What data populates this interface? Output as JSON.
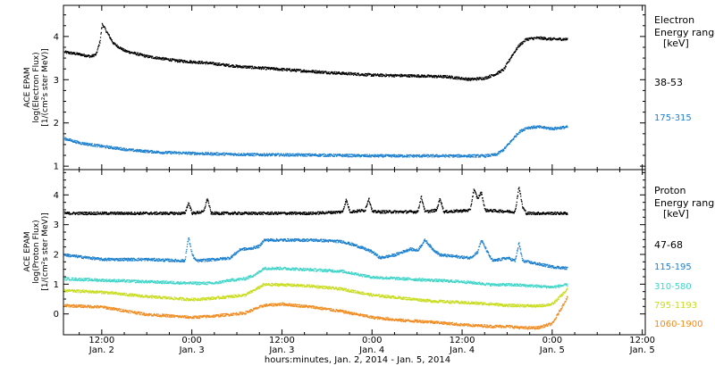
{
  "chart_data": {
    "type": "scatter",
    "xlabel": "hours:minutes, Jan.  2, 2014 - Jan.  5, 2014",
    "x_ticks": [
      {
        "hour": 12,
        "time": "12:00",
        "day": "Jan. 2"
      },
      {
        "hour": 24,
        "time": "0:00",
        "day": "Jan. 3"
      },
      {
        "hour": 36,
        "time": "12:00",
        "day": "Jan. 3"
      },
      {
        "hour": 48,
        "time": "0:00",
        "day": "Jan. 4"
      },
      {
        "hour": 60,
        "time": "12:00",
        "day": "Jan. 4"
      },
      {
        "hour": 72,
        "time": "0:00",
        "day": "Jan. 5"
      },
      {
        "hour": 84,
        "time": "12:00",
        "day": "Jan. 5"
      }
    ],
    "xlim_hours": [
      6.9,
      84.4
    ],
    "panels": [
      {
        "id": "electron",
        "ylabel_lines": [
          "ACE EPAM",
          "log(Electron Flux)",
          "[1/(cm²s ster MeV)]"
        ],
        "ylim": [
          0.92,
          4.72
        ],
        "y_ticks": [
          "1",
          "2",
          "3",
          "4"
        ],
        "legend_title": [
          "Electron",
          "Energy range",
          "[keV]"
        ],
        "series": [
          {
            "name": "38-53",
            "color": "#000000",
            "points": [
              [
                7,
                3.65
              ],
              [
                9,
                3.6
              ],
              [
                10.5,
                3.55
              ],
              [
                11.2,
                3.6
              ],
              [
                11.7,
                3.9
              ],
              [
                12,
                4.3
              ],
              [
                12.5,
                4.15
              ],
              [
                13.5,
                3.85
              ],
              [
                15,
                3.68
              ],
              [
                18,
                3.55
              ],
              [
                22,
                3.45
              ],
              [
                26,
                3.4
              ],
              [
                30,
                3.32
              ],
              [
                36,
                3.25
              ],
              [
                42,
                3.18
              ],
              [
                48,
                3.12
              ],
              [
                54,
                3.1
              ],
              [
                58,
                3.08
              ],
              [
                61,
                3.02
              ],
              [
                63,
                3.05
              ],
              [
                64.5,
                3.15
              ],
              [
                65.5,
                3.25
              ],
              [
                66.5,
                3.55
              ],
              [
                67.5,
                3.8
              ],
              [
                68.5,
                3.95
              ],
              [
                70,
                3.98
              ],
              [
                72,
                3.95
              ],
              [
                74,
                3.95
              ]
            ]
          },
          {
            "name": "175-315",
            "color": "#1a7fcf",
            "points": [
              [
                7,
                1.65
              ],
              [
                9,
                1.55
              ],
              [
                12,
                1.47
              ],
              [
                16,
                1.38
              ],
              [
                20,
                1.33
              ],
              [
                26,
                1.3
              ],
              [
                32,
                1.28
              ],
              [
                40,
                1.27
              ],
              [
                48,
                1.25
              ],
              [
                56,
                1.25
              ],
              [
                63,
                1.25
              ],
              [
                64.5,
                1.28
              ],
              [
                65.5,
                1.4
              ],
              [
                66.5,
                1.6
              ],
              [
                67.5,
                1.8
              ],
              [
                68.5,
                1.9
              ],
              [
                70,
                1.92
              ],
              [
                72,
                1.88
              ],
              [
                74,
                1.92
              ]
            ]
          }
        ]
      },
      {
        "id": "proton",
        "ylabel_lines": [
          "ACE EPAM",
          "log(Proton Flux)",
          "[1/(cm²s ster MeV)]"
        ],
        "ylim": [
          -0.7,
          4.85
        ],
        "y_ticks": [
          "0",
          "1",
          "2",
          "3",
          "4"
        ],
        "legend_title": [
          "Proton",
          "Energy range",
          "[keV]"
        ],
        "series": [
          {
            "name": "47-68",
            "color": "#000000",
            "points": [
              [
                7,
                3.4
              ],
              [
                23,
                3.4
              ],
              [
                23.5,
                3.75
              ],
              [
                24,
                3.4
              ],
              [
                25.5,
                3.45
              ],
              [
                26,
                3.9
              ],
              [
                26.5,
                3.4
              ],
              [
                40,
                3.4
              ],
              [
                44,
                3.45
              ],
              [
                44.5,
                3.85
              ],
              [
                45,
                3.45
              ],
              [
                47,
                3.5
              ],
              [
                47.5,
                3.9
              ],
              [
                48,
                3.45
              ],
              [
                54,
                3.45
              ],
              [
                54.5,
                3.95
              ],
              [
                55,
                3.45
              ],
              [
                56.5,
                3.5
              ],
              [
                57,
                3.9
              ],
              [
                57.5,
                3.45
              ],
              [
                61,
                3.5
              ],
              [
                61.5,
                4.2
              ],
              [
                62,
                3.9
              ],
              [
                62.5,
                4.1
              ],
              [
                63,
                3.5
              ],
              [
                67,
                3.45
              ],
              [
                67.5,
                4.3
              ],
              [
                68,
                3.6
              ],
              [
                68.5,
                3.4
              ],
              [
                74,
                3.4
              ]
            ]
          },
          {
            "name": "115-195",
            "color": "#1a7fcf",
            "points": [
              [
                7,
                2.0
              ],
              [
                12,
                1.85
              ],
              [
                18,
                1.85
              ],
              [
                23,
                1.8
              ],
              [
                23.5,
                2.6
              ],
              [
                24,
                2.0
              ],
              [
                24.5,
                1.8
              ],
              [
                27,
                1.85
              ],
              [
                29,
                1.9
              ],
              [
                30.5,
                2.2
              ],
              [
                31.5,
                2.2
              ],
              [
                33,
                2.3
              ],
              [
                33.5,
                2.5
              ],
              [
                36,
                2.5
              ],
              [
                40,
                2.5
              ],
              [
                44,
                2.45
              ],
              [
                46,
                2.3
              ],
              [
                48,
                2.1
              ],
              [
                49,
                1.9
              ],
              [
                51,
                2.0
              ],
              [
                53,
                2.2
              ],
              [
                54,
                2.15
              ],
              [
                55,
                2.5
              ],
              [
                56,
                2.2
              ],
              [
                57,
                2.0
              ],
              [
                59,
                1.95
              ],
              [
                61,
                1.9
              ],
              [
                62,
                2.1
              ],
              [
                62.5,
                2.5
              ],
              [
                63.5,
                2.0
              ],
              [
                64,
                1.8
              ],
              [
                65,
                1.85
              ],
              [
                66,
                1.9
              ],
              [
                67,
                1.8
              ],
              [
                67.5,
                2.4
              ],
              [
                68,
                1.8
              ],
              [
                70,
                1.7
              ],
              [
                72,
                1.6
              ],
              [
                74,
                1.55
              ]
            ]
          },
          {
            "name": "310-580",
            "color": "#3fd5c8",
            "points": [
              [
                7,
                1.2
              ],
              [
                12,
                1.15
              ],
              [
                18,
                1.1
              ],
              [
                24,
                1.05
              ],
              [
                27,
                1.05
              ],
              [
                29,
                1.15
              ],
              [
                31,
                1.2
              ],
              [
                32.5,
                1.35
              ],
              [
                33.5,
                1.55
              ],
              [
                36,
                1.55
              ],
              [
                40,
                1.5
              ],
              [
                44,
                1.45
              ],
              [
                48,
                1.25
              ],
              [
                52,
                1.2
              ],
              [
                56,
                1.15
              ],
              [
                60,
                1.1
              ],
              [
                62,
                1.05
              ],
              [
                64,
                1.0
              ],
              [
                66,
                1.0
              ],
              [
                68,
                0.98
              ],
              [
                70,
                0.95
              ],
              [
                72,
                0.92
              ],
              [
                74,
                1.0
              ]
            ]
          },
          {
            "name": "795-1193",
            "color": "#c8dc1e",
            "points": [
              [
                7,
                0.8
              ],
              [
                12,
                0.75
              ],
              [
                18,
                0.6
              ],
              [
                24,
                0.5
              ],
              [
                27,
                0.55
              ],
              [
                29,
                0.6
              ],
              [
                31,
                0.65
              ],
              [
                32.5,
                0.85
              ],
              [
                33.5,
                1.0
              ],
              [
                36,
                1.0
              ],
              [
                40,
                0.95
              ],
              [
                44,
                0.85
              ],
              [
                48,
                0.65
              ],
              [
                52,
                0.55
              ],
              [
                56,
                0.45
              ],
              [
                60,
                0.4
              ],
              [
                64,
                0.35
              ],
              [
                66,
                0.3
              ],
              [
                68,
                0.3
              ],
              [
                70,
                0.28
              ],
              [
                72,
                0.35
              ],
              [
                74,
                0.85
              ]
            ]
          },
          {
            "name": "1060-1900",
            "color": "#f28a1e",
            "points": [
              [
                7,
                0.3
              ],
              [
                12,
                0.25
              ],
              [
                18,
                0.0
              ],
              [
                24,
                -0.1
              ],
              [
                27,
                -0.05
              ],
              [
                29,
                0.0
              ],
              [
                31,
                0.05
              ],
              [
                32.5,
                0.2
              ],
              [
                33.5,
                0.3
              ],
              [
                36,
                0.35
              ],
              [
                40,
                0.25
              ],
              [
                44,
                0.1
              ],
              [
                48,
                -0.1
              ],
              [
                52,
                -0.2
              ],
              [
                56,
                -0.25
              ],
              [
                60,
                -0.35
              ],
              [
                64,
                -0.4
              ],
              [
                66,
                -0.4
              ],
              [
                68,
                -0.45
              ],
              [
                70,
                -0.45
              ],
              [
                72,
                -0.3
              ],
              [
                74,
                0.6
              ]
            ]
          }
        ]
      }
    ]
  }
}
